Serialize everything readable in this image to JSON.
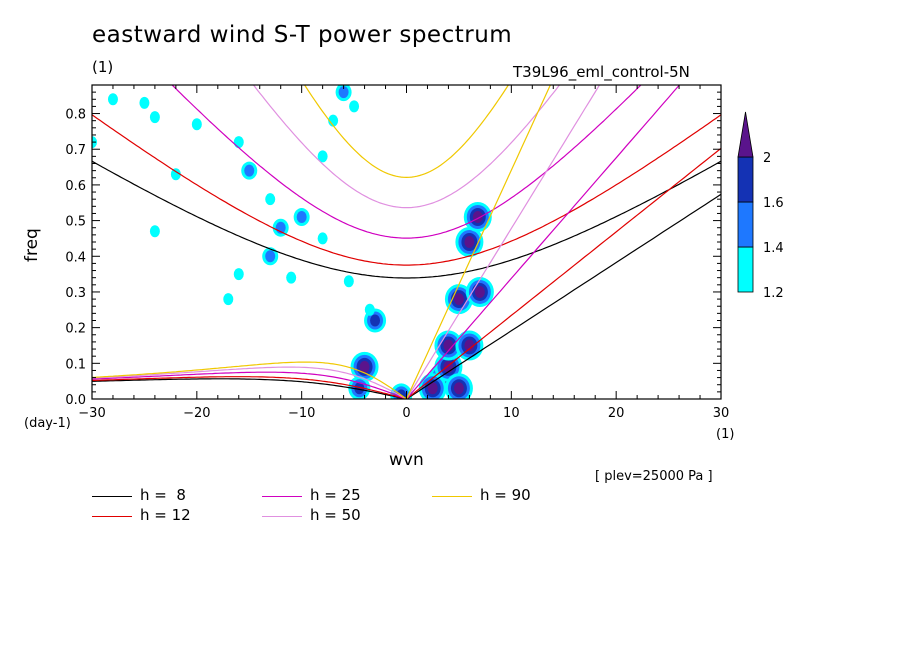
{
  "title": "eastward wind S-T power spectrum",
  "unit_left": "(1)",
  "run_name": "T39L96_eml_control-5N",
  "plev": "[ plev=25000 Pa ]",
  "chart_data": {
    "type": "heatmap",
    "title": "eastward wind S-T power spectrum",
    "xlabel": "wvn",
    "ylabel": "freq",
    "x_unit": "(1)",
    "y_unit": "(day-1)",
    "xlim": [
      -30,
      30
    ],
    "ylim": [
      0,
      0.88
    ],
    "x_ticks": [
      -30,
      -20,
      -10,
      0,
      10,
      20,
      30
    ],
    "y_ticks": [
      0.0,
      0.1,
      0.2,
      0.3,
      0.4,
      0.5,
      0.6,
      0.7,
      0.8
    ],
    "colorbar": {
      "levels": [
        1.2,
        1.4,
        1.6,
        2
      ],
      "colors": [
        "#00ffff",
        "#1e78ff",
        "#1432b4",
        "#5a148c"
      ]
    },
    "dispersion_curves": [
      {
        "name": "h =  8",
        "h": 8,
        "color": "#000000"
      },
      {
        "name": "h = 12",
        "h": 12,
        "color": "#e00000"
      },
      {
        "name": "h = 25",
        "h": 25,
        "color": "#d000c0"
      },
      {
        "name": "h = 50",
        "h": 50,
        "color": "#e090e0"
      },
      {
        "name": "h = 90",
        "h": 90,
        "color": "#f0c800"
      }
    ],
    "blobs": [
      {
        "x": 3.5,
        "y": 0.06,
        "level": 4
      },
      {
        "x": 2.5,
        "y": 0.03,
        "level": 4
      },
      {
        "x": 4.0,
        "y": 0.09,
        "level": 4
      },
      {
        "x": 4.0,
        "y": 0.15,
        "level": 4
      },
      {
        "x": 5.0,
        "y": 0.28,
        "level": 4
      },
      {
        "x": 6.0,
        "y": 0.44,
        "level": 4
      },
      {
        "x": 6.8,
        "y": 0.51,
        "level": 4
      },
      {
        "x": 7.0,
        "y": 0.3,
        "level": 4
      },
      {
        "x": 6.0,
        "y": 0.15,
        "level": 4
      },
      {
        "x": 5.0,
        "y": 0.03,
        "level": 4
      },
      {
        "x": -4.0,
        "y": 0.09,
        "level": 4
      },
      {
        "x": -4.5,
        "y": 0.03,
        "level": 3
      },
      {
        "x": -3.0,
        "y": 0.22,
        "level": 3
      },
      {
        "x": -0.5,
        "y": 0.01,
        "level": 3
      },
      {
        "x": -12.0,
        "y": 0.48,
        "level": 2
      },
      {
        "x": -10.0,
        "y": 0.51,
        "level": 2
      },
      {
        "x": -15.0,
        "y": 0.64,
        "level": 2
      },
      {
        "x": -20.0,
        "y": 0.77,
        "level": 1
      },
      {
        "x": -6.0,
        "y": 0.86,
        "level": 2
      },
      {
        "x": -28.0,
        "y": 0.84,
        "level": 1
      },
      {
        "x": -25.0,
        "y": 0.83,
        "level": 1
      },
      {
        "x": -22.0,
        "y": 0.63,
        "level": 1
      },
      {
        "x": -13.0,
        "y": 0.4,
        "level": 2
      },
      {
        "x": -11.0,
        "y": 0.34,
        "level": 1
      },
      {
        "x": -16.0,
        "y": 0.35,
        "level": 1
      },
      {
        "x": -17.0,
        "y": 0.28,
        "level": 1
      },
      {
        "x": -24.0,
        "y": 0.47,
        "level": 1
      },
      {
        "x": -13.0,
        "y": 0.56,
        "level": 1
      },
      {
        "x": -8.0,
        "y": 0.45,
        "level": 1
      },
      {
        "x": -7.0,
        "y": 0.78,
        "level": 1
      },
      {
        "x": -5.0,
        "y": 0.82,
        "level": 1
      },
      {
        "x": -8.0,
        "y": 0.68,
        "level": 1
      },
      {
        "x": -16.0,
        "y": 0.72,
        "level": 1
      },
      {
        "x": -24.0,
        "y": 0.79,
        "level": 1
      },
      {
        "x": -3.5,
        "y": 0.25,
        "level": 1
      },
      {
        "x": -5.5,
        "y": 0.33,
        "level": 1
      },
      {
        "x": -30.0,
        "y": 0.72,
        "level": 1
      }
    ]
  },
  "legend": [
    {
      "label": "h =  8",
      "color": "#000000"
    },
    {
      "label": "h = 12",
      "color": "#e00000"
    },
    {
      "label": "h = 25",
      "color": "#d000c0"
    },
    {
      "label": "h = 50",
      "color": "#e090e0"
    },
    {
      "label": "h = 90",
      "color": "#f0c800"
    }
  ]
}
